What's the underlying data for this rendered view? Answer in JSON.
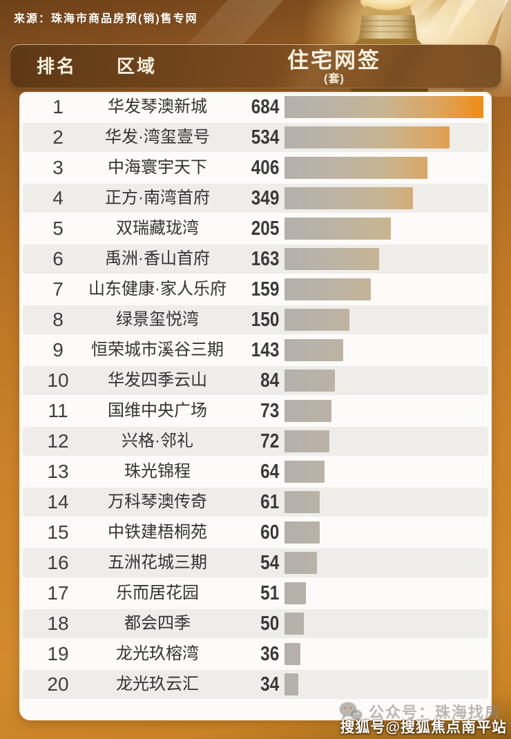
{
  "banner": {
    "source": "来源：珠海市商品房预(销)售专网"
  },
  "table_header": {
    "rank": "排名",
    "region": "区域",
    "metric": "住宅网签",
    "unit": "(套)"
  },
  "chart_data": {
    "type": "bar",
    "orientation": "horizontal",
    "title": "住宅网签(套)",
    "xlabel": "",
    "ylabel": "区域",
    "xlim": [
      0,
      684
    ],
    "grid": false,
    "legend": null,
    "ranks": [
      "1",
      "2",
      "3",
      "4",
      "5",
      "6",
      "7",
      "8",
      "9",
      "10",
      "11",
      "12",
      "13",
      "14",
      "15",
      "16",
      "17",
      "18",
      "19",
      "20"
    ],
    "categories": [
      "华发琴澳新城",
      "华发·湾玺壹号",
      "中海寰宇天下",
      "正方·南湾首府",
      "双瑞藏珑湾",
      "禹洲·香山首府",
      "山东健康·家人乐府",
      "绿景玺悦湾",
      "恒荣城市溪谷三期",
      "华发四季云山",
      "国维中央广场",
      "兴格·邻礼",
      "珠光锦程",
      "万科琴澳传奇",
      "中铁建梧桐苑",
      "五洲花城三期",
      "乐而居花园",
      "都会四季",
      "龙光玖榕湾",
      "龙光玖云汇"
    ],
    "values": [
      684,
      534,
      406,
      349,
      205,
      163,
      159,
      150,
      143,
      84,
      73,
      72,
      64,
      61,
      60,
      54,
      51,
      50,
      36,
      34
    ],
    "bar_widths_pct": [
      100,
      83,
      72,
      64.5,
      53.5,
      47.5,
      43.5,
      32.5,
      29.5,
      25.5,
      23.5,
      22.5,
      20,
      17.8,
      17.8,
      16.3,
      10.8,
      9.8,
      8,
      7
    ],
    "bar_gradient": [
      "#b3b0ab",
      "#c8b591",
      "#ee8d13"
    ]
  },
  "watermarks": {
    "wechat_label": "公众号：珠海找房",
    "sohu_label": "搜狐号@搜狐焦点南平站"
  },
  "colors": {
    "header_bar": "#6d421a",
    "header_text": "#f9f2e2",
    "card_bg": "#fcfbf9",
    "row_alt": "#efedea",
    "accent_orange": "#ee8d13",
    "bar_gray": "#b3b0ab",
    "background_orange": "#cc8229"
  }
}
